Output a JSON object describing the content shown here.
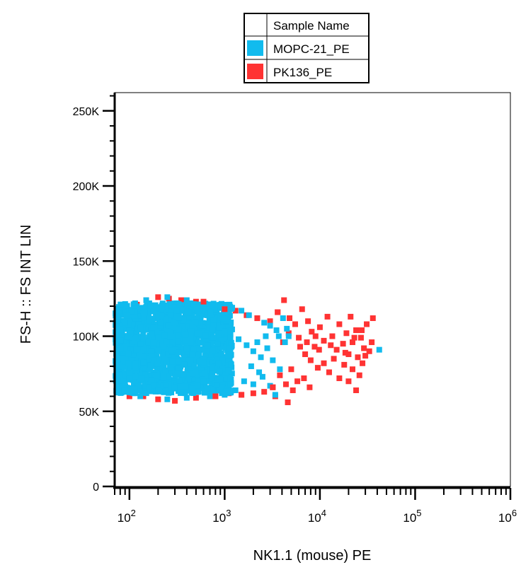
{
  "chart_data": {
    "type": "scatter",
    "xlabel": "NK1.1 (mouse) PE",
    "ylabel": "FS-H :: FS INT LIN",
    "x_scale": "log",
    "xlim": [
      70,
      1000000
    ],
    "ylim": [
      0,
      262144
    ],
    "x_ticks": [
      {
        "value": 100,
        "base": "10",
        "exp": "2"
      },
      {
        "value": 1000,
        "base": "10",
        "exp": "3"
      },
      {
        "value": 10000,
        "base": "10",
        "exp": "4"
      },
      {
        "value": 100000,
        "base": "10",
        "exp": "5"
      },
      {
        "value": 1000000,
        "base": "10",
        "exp": "6"
      }
    ],
    "y_ticks": [
      {
        "value": 0,
        "label": "0"
      },
      {
        "value": 50000,
        "label": "50K"
      },
      {
        "value": 100000,
        "label": "100K"
      },
      {
        "value": 150000,
        "label": "150K"
      },
      {
        "value": 200000,
        "label": "200K"
      },
      {
        "value": 250000,
        "label": "250K"
      }
    ],
    "grid": false,
    "legend_placement": "top-center",
    "legend_header": "Sample Name",
    "series": [
      {
        "name": "PK136_PE",
        "color": "#ff3333",
        "points": [
          [
            90,
            118000
          ],
          [
            120,
            121000
          ],
          [
            150,
            124000
          ],
          [
            200,
            126000
          ],
          [
            260,
            125000
          ],
          [
            350,
            124000
          ],
          [
            500,
            123000
          ],
          [
            700,
            121000
          ],
          [
            1000,
            118000
          ],
          [
            1300,
            117000
          ],
          [
            1700,
            114000
          ],
          [
            2200,
            112000
          ],
          [
            3000,
            110000
          ],
          [
            3600,
            116000
          ],
          [
            4200,
            124000
          ],
          [
            4800,
            112000
          ],
          [
            5500,
            108000
          ],
          [
            6500,
            118000
          ],
          [
            7500,
            110000
          ],
          [
            8200,
            103000
          ],
          [
            9000,
            100000
          ],
          [
            10000,
            106000
          ],
          [
            11000,
            97000
          ],
          [
            12000,
            113000
          ],
          [
            13500,
            100000
          ],
          [
            15000,
            91000
          ],
          [
            16000,
            108000
          ],
          [
            17500,
            95000
          ],
          [
            19000,
            102000
          ],
          [
            20000,
            88000
          ],
          [
            21000,
            113000
          ],
          [
            22000,
            96000
          ],
          [
            24000,
            104000
          ],
          [
            25000,
            86000
          ],
          [
            27000,
            99000
          ],
          [
            29000,
            92000
          ],
          [
            31000,
            108000
          ],
          [
            33000,
            90000
          ],
          [
            35000,
            96000
          ],
          [
            36000,
            112000
          ],
          [
            6200,
            93000
          ],
          [
            7000,
            88000
          ],
          [
            8000,
            84000
          ],
          [
            9500,
            79000
          ],
          [
            11000,
            82000
          ],
          [
            12500,
            76000
          ],
          [
            14000,
            85000
          ],
          [
            16000,
            72000
          ],
          [
            18000,
            81000
          ],
          [
            20000,
            70000
          ],
          [
            22000,
            78000
          ],
          [
            24000,
            64000
          ],
          [
            26000,
            74000
          ],
          [
            28000,
            82000
          ],
          [
            30000,
            87000
          ],
          [
            5000,
            78000
          ],
          [
            5800,
            70000
          ],
          [
            6800,
            72000
          ],
          [
            7800,
            66000
          ],
          [
            4400,
            68000
          ],
          [
            3800,
            74000
          ],
          [
            3200,
            66000
          ],
          [
            2600,
            63000
          ],
          [
            2000,
            62000
          ],
          [
            1500,
            61000
          ],
          [
            1100,
            62000
          ],
          [
            800,
            60000
          ],
          [
            500,
            59000
          ],
          [
            300,
            57000
          ],
          [
            200,
            58000
          ],
          [
            140,
            60000
          ],
          [
            100,
            60000
          ],
          [
            85,
            65000
          ],
          [
            5200,
            64000
          ],
          [
            3400,
            60000
          ],
          [
            4600,
            56000
          ],
          [
            9800,
            91000
          ],
          [
            13000,
            94000
          ],
          [
            18500,
            89000
          ],
          [
            23000,
            99000
          ],
          [
            27500,
            104000
          ],
          [
            4100,
            96000
          ],
          [
            4700,
            102000
          ],
          [
            6000,
            99000
          ],
          [
            7300,
            96000
          ],
          [
            8800,
            93000
          ]
        ]
      },
      {
        "name": "MOPC-21_PE",
        "color": "#11bbee",
        "core": {
          "x_min": 70,
          "x_max": 1200,
          "y_min": 62000,
          "y_max": 122000
        },
        "points": [
          [
            150,
            124000
          ],
          [
            250,
            126000
          ],
          [
            400,
            124000
          ],
          [
            600,
            122000
          ],
          [
            900,
            121000
          ],
          [
            1200,
            119000
          ],
          [
            1500,
            117000
          ],
          [
            1800,
            114000
          ],
          [
            2200,
            112000
          ],
          [
            2600,
            109000
          ],
          [
            3000,
            107000
          ],
          [
            3500,
            104000
          ],
          [
            4100,
            112000
          ],
          [
            4500,
            105000
          ],
          [
            4700,
            100000
          ],
          [
            1400,
            98000
          ],
          [
            1700,
            94000
          ],
          [
            2000,
            90000
          ],
          [
            2400,
            86000
          ],
          [
            2800,
            92000
          ],
          [
            3200,
            84000
          ],
          [
            3800,
            78000
          ],
          [
            1600,
            70000
          ],
          [
            2000,
            68000
          ],
          [
            2500,
            73000
          ],
          [
            3000,
            67000
          ],
          [
            3400,
            61000
          ],
          [
            1300,
            64000
          ],
          [
            1000,
            61000
          ],
          [
            700,
            60000
          ],
          [
            400,
            59000
          ],
          [
            250,
            58000
          ],
          [
            130,
            60000
          ],
          [
            88,
            64000
          ],
          [
            76,
            113000
          ],
          [
            42000,
            91000
          ],
          [
            4300,
            96000
          ],
          [
            3700,
            100000
          ],
          [
            2700,
            100000
          ],
          [
            2200,
            96000
          ],
          [
            1900,
            80000
          ],
          [
            2300,
            76000
          ]
        ]
      }
    ]
  }
}
